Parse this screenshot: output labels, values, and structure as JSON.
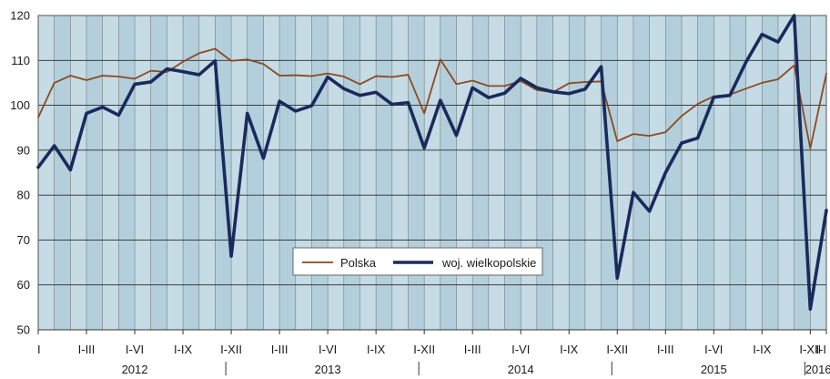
{
  "chart_data": {
    "type": "line",
    "ylim": [
      50,
      120
    ],
    "yticks": [
      50,
      60,
      70,
      80,
      90,
      100,
      110,
      120
    ],
    "x_tick_labels": [
      "I",
      "I-III",
      "I-VI",
      "I-IX",
      "I-XII",
      "I-III",
      "I-VI",
      "I-IX",
      "I-XII",
      "I-III",
      "I-VI",
      "I-IX",
      "I-XII",
      "I-III",
      "I-VI",
      "I-IX",
      "I-XII",
      "I-I"
    ],
    "years": [
      "2012",
      "2013",
      "2014",
      "2015",
      "2016"
    ],
    "legend": {
      "placement": "bottom-center"
    },
    "grid": true,
    "colors": {
      "plot_bg_even": "#c5dbe6",
      "plot_bg_odd": "#b3cfdc",
      "grid": "#7a7a7a",
      "polska": "#8b4a1f",
      "wielkopolskie": "#1b2a5c"
    },
    "series": [
      {
        "name": "Polska",
        "values": [
          97.3,
          105.0,
          106.6,
          105.6,
          106.6,
          106.4,
          105.9,
          107.7,
          107.4,
          109.7,
          111.6,
          112.6,
          109.9,
          110.2,
          109.2,
          106.6,
          106.7,
          106.5,
          107.1,
          106.4,
          104.7,
          106.5,
          106.3,
          106.8,
          98.2,
          110.2,
          104.7,
          105.5,
          104.3,
          104.3,
          105.4,
          103.4,
          102.9,
          104.9,
          105.2,
          105.3,
          92.0,
          93.6,
          93.2,
          94.0,
          97.6,
          100.3,
          102.0,
          102.4,
          103.7,
          105.0,
          105.8,
          108.9,
          90.4,
          107.1
        ]
      },
      {
        "name": "woj. wielkopolskie",
        "values": [
          86.2,
          91.0,
          85.6,
          98.2,
          99.6,
          97.8,
          104.7,
          105.2,
          108.1,
          107.5,
          106.8,
          109.9,
          66.4,
          98.2,
          88.2,
          100.9,
          98.7,
          99.9,
          106.3,
          103.7,
          102.2,
          102.9,
          100.2,
          100.6,
          90.5,
          101.1,
          93.3,
          103.9,
          101.7,
          102.7,
          106.0,
          103.9,
          103.0,
          102.6,
          103.6,
          108.6,
          61.5,
          80.6,
          76.4,
          85.0,
          91.6,
          92.7,
          101.8,
          102.2,
          109.6,
          115.8,
          114.1,
          120.0,
          54.6,
          76.6
        ]
      }
    ]
  }
}
